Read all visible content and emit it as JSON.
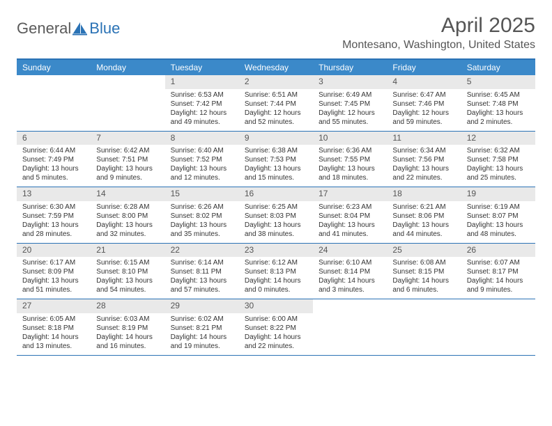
{
  "logo": {
    "general": "General",
    "blue": "Blue"
  },
  "title": "April 2025",
  "location": "Montesano, Washington, United States",
  "colors": {
    "accent": "#3b89c9",
    "accent_border": "#2a72b5",
    "daynum_bg": "#e9e9e9",
    "text_gray": "#555555"
  },
  "weekdays": [
    "Sunday",
    "Monday",
    "Tuesday",
    "Wednesday",
    "Thursday",
    "Friday",
    "Saturday"
  ],
  "weeks": [
    [
      null,
      null,
      {
        "n": "1",
        "sr": "6:53 AM",
        "ss": "7:42 PM",
        "dl": "12 hours and 49 minutes."
      },
      {
        "n": "2",
        "sr": "6:51 AM",
        "ss": "7:44 PM",
        "dl": "12 hours and 52 minutes."
      },
      {
        "n": "3",
        "sr": "6:49 AM",
        "ss": "7:45 PM",
        "dl": "12 hours and 55 minutes."
      },
      {
        "n": "4",
        "sr": "6:47 AM",
        "ss": "7:46 PM",
        "dl": "12 hours and 59 minutes."
      },
      {
        "n": "5",
        "sr": "6:45 AM",
        "ss": "7:48 PM",
        "dl": "13 hours and 2 minutes."
      }
    ],
    [
      {
        "n": "6",
        "sr": "6:44 AM",
        "ss": "7:49 PM",
        "dl": "13 hours and 5 minutes."
      },
      {
        "n": "7",
        "sr": "6:42 AM",
        "ss": "7:51 PM",
        "dl": "13 hours and 9 minutes."
      },
      {
        "n": "8",
        "sr": "6:40 AM",
        "ss": "7:52 PM",
        "dl": "13 hours and 12 minutes."
      },
      {
        "n": "9",
        "sr": "6:38 AM",
        "ss": "7:53 PM",
        "dl": "13 hours and 15 minutes."
      },
      {
        "n": "10",
        "sr": "6:36 AM",
        "ss": "7:55 PM",
        "dl": "13 hours and 18 minutes."
      },
      {
        "n": "11",
        "sr": "6:34 AM",
        "ss": "7:56 PM",
        "dl": "13 hours and 22 minutes."
      },
      {
        "n": "12",
        "sr": "6:32 AM",
        "ss": "7:58 PM",
        "dl": "13 hours and 25 minutes."
      }
    ],
    [
      {
        "n": "13",
        "sr": "6:30 AM",
        "ss": "7:59 PM",
        "dl": "13 hours and 28 minutes."
      },
      {
        "n": "14",
        "sr": "6:28 AM",
        "ss": "8:00 PM",
        "dl": "13 hours and 32 minutes."
      },
      {
        "n": "15",
        "sr": "6:26 AM",
        "ss": "8:02 PM",
        "dl": "13 hours and 35 minutes."
      },
      {
        "n": "16",
        "sr": "6:25 AM",
        "ss": "8:03 PM",
        "dl": "13 hours and 38 minutes."
      },
      {
        "n": "17",
        "sr": "6:23 AM",
        "ss": "8:04 PM",
        "dl": "13 hours and 41 minutes."
      },
      {
        "n": "18",
        "sr": "6:21 AM",
        "ss": "8:06 PM",
        "dl": "13 hours and 44 minutes."
      },
      {
        "n": "19",
        "sr": "6:19 AM",
        "ss": "8:07 PM",
        "dl": "13 hours and 48 minutes."
      }
    ],
    [
      {
        "n": "20",
        "sr": "6:17 AM",
        "ss": "8:09 PM",
        "dl": "13 hours and 51 minutes."
      },
      {
        "n": "21",
        "sr": "6:15 AM",
        "ss": "8:10 PM",
        "dl": "13 hours and 54 minutes."
      },
      {
        "n": "22",
        "sr": "6:14 AM",
        "ss": "8:11 PM",
        "dl": "13 hours and 57 minutes."
      },
      {
        "n": "23",
        "sr": "6:12 AM",
        "ss": "8:13 PM",
        "dl": "14 hours and 0 minutes."
      },
      {
        "n": "24",
        "sr": "6:10 AM",
        "ss": "8:14 PM",
        "dl": "14 hours and 3 minutes."
      },
      {
        "n": "25",
        "sr": "6:08 AM",
        "ss": "8:15 PM",
        "dl": "14 hours and 6 minutes."
      },
      {
        "n": "26",
        "sr": "6:07 AM",
        "ss": "8:17 PM",
        "dl": "14 hours and 9 minutes."
      }
    ],
    [
      {
        "n": "27",
        "sr": "6:05 AM",
        "ss": "8:18 PM",
        "dl": "14 hours and 13 minutes."
      },
      {
        "n": "28",
        "sr": "6:03 AM",
        "ss": "8:19 PM",
        "dl": "14 hours and 16 minutes."
      },
      {
        "n": "29",
        "sr": "6:02 AM",
        "ss": "8:21 PM",
        "dl": "14 hours and 19 minutes."
      },
      {
        "n": "30",
        "sr": "6:00 AM",
        "ss": "8:22 PM",
        "dl": "14 hours and 22 minutes."
      },
      null,
      null,
      null
    ]
  ],
  "labels": {
    "sunrise": "Sunrise:",
    "sunset": "Sunset:",
    "daylight": "Daylight:"
  }
}
